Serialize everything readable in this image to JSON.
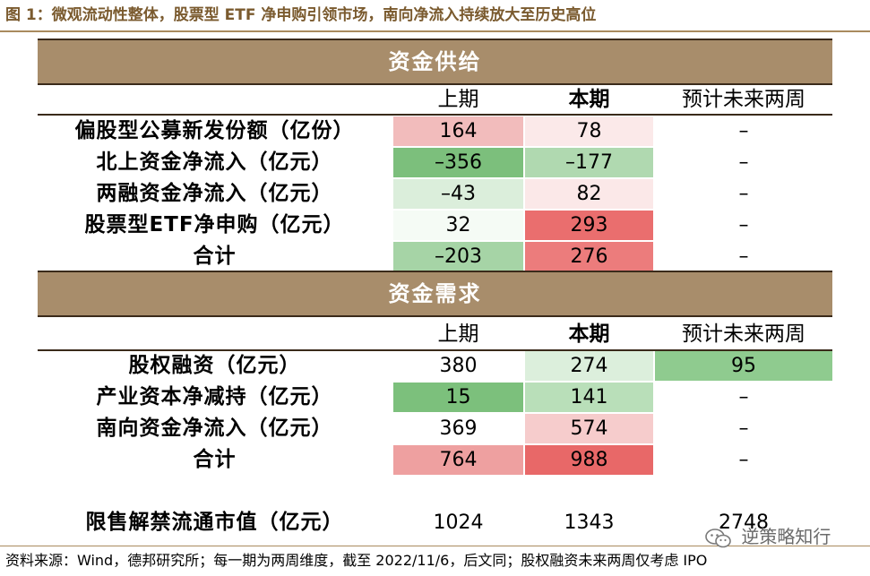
{
  "title": "图 1：微观流动性整体，股票型 ETF 净申购引领市场，南向净流入持续放大至历史高位",
  "columns": {
    "prev": "上期",
    "curr": "本期",
    "next": "预计未来两周"
  },
  "supply": {
    "section_label": "资金供给",
    "rows": [
      {
        "label": "偏股型公募新发份额（亿份）",
        "prev": "164",
        "curr": "78",
        "next": "–",
        "prev_bg": "#f2bcbc",
        "curr_bg": "#fbe9e9",
        "next_bg": "#ffffff"
      },
      {
        "label": "北上资金净流入（亿元）",
        "prev": "–356",
        "curr": "–177",
        "next": "–",
        "prev_bg": "#7cbf7c",
        "curr_bg": "#b0d9b0",
        "next_bg": "#ffffff"
      },
      {
        "label": "两融资金净流入（亿元）",
        "prev": "–43",
        "curr": "82",
        "next": "–",
        "prev_bg": "#dbeedb",
        "curr_bg": "#fbe8e8",
        "next_bg": "#ffffff"
      },
      {
        "label": "股票型ETF净申购（亿元）",
        "prev": "32",
        "curr": "293",
        "next": "–",
        "prev_bg": "#f5fbf5",
        "curr_bg": "#ea6e6e",
        "next_bg": "#ffffff"
      },
      {
        "label": "合计",
        "prev": "–203",
        "curr": "276",
        "next": "–",
        "prev_bg": "#a6d4a6",
        "curr_bg": "#ec7c7c",
        "next_bg": "#ffffff"
      }
    ]
  },
  "demand": {
    "section_label": "资金需求",
    "rows": [
      {
        "label": "股权融资（亿元）",
        "prev": "380",
        "curr": "274",
        "next": "95",
        "prev_bg": "#ffffff",
        "curr_bg": "#dcefdc",
        "next_bg": "#8fcb8f"
      },
      {
        "label": "产业资本净减持（亿元）",
        "prev": "15",
        "curr": "141",
        "next": "–",
        "prev_bg": "#7cc07c",
        "curr_bg": "#b9dfb9",
        "next_bg": "#ffffff"
      },
      {
        "label": "南向资金净流入（亿元）",
        "prev": "369",
        "curr": "574",
        "next": "–",
        "prev_bg": "#ffffff",
        "curr_bg": "#f6cccc",
        "next_bg": "#ffffff"
      },
      {
        "label": "合计",
        "prev": "764",
        "curr": "988",
        "next": "–",
        "prev_bg": "#eea0a0",
        "curr_bg": "#e86868",
        "next_bg": "#ffffff"
      }
    ]
  },
  "unlock": {
    "label": "限售解禁流通市值（亿元）",
    "prev": "1024",
    "curr": "1343",
    "next": "2748"
  },
  "source": "资料来源：Wind，德邦研究所；每一期为两周维度，截至 2022/11/6，后文同；股权融资未来两周仅考虑 IPO",
  "watermark": {
    "text": "逆策略知行",
    "icon": "wechat-icon"
  }
}
